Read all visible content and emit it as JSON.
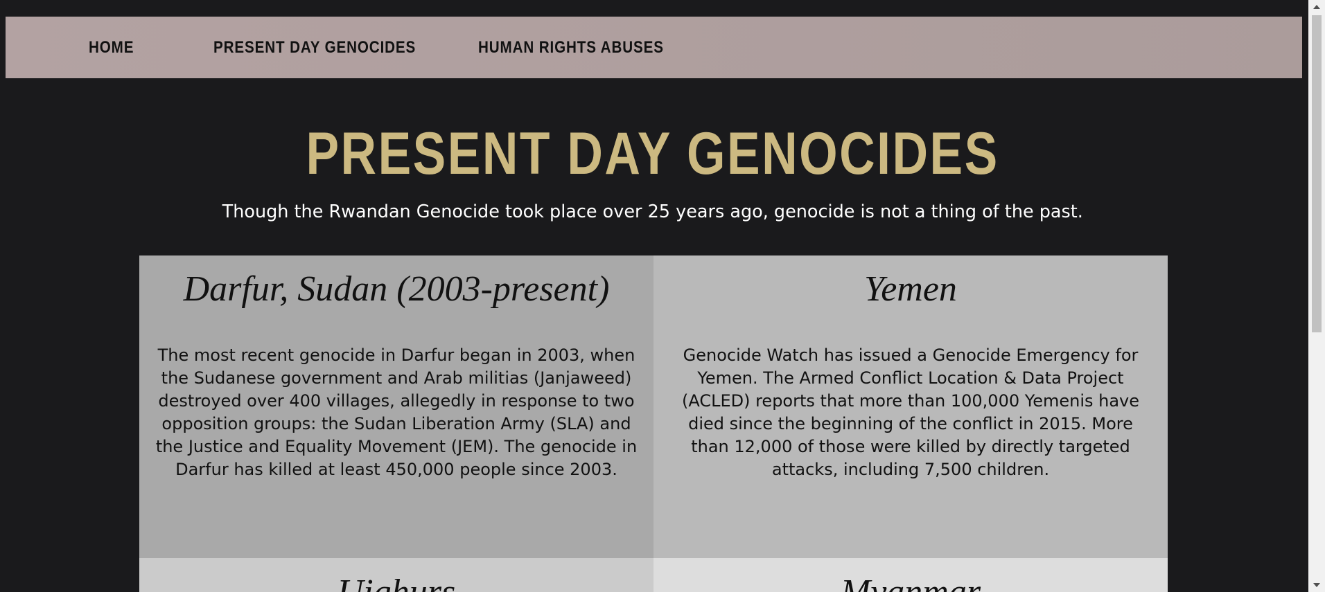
{
  "nav": {
    "items": [
      {
        "label": "HOME"
      },
      {
        "label": "PRESENT DAY GENOCIDES"
      },
      {
        "label": "HUMAN RIGHTS ABUSES"
      }
    ]
  },
  "main": {
    "title": "PRESENT DAY GENOCIDES",
    "subtitle": "Though the Rwandan Genocide took place over 25 years ago, genocide is not a thing of the past."
  },
  "cards": [
    {
      "title": "Darfur, Sudan (2003-present)",
      "body": "The most recent genocide in Darfur began in 2003, when the Sudanese government and Arab militias (Janjaweed) destroyed over 400 villages, allegedly in response to two opposition groups: the Sudan Liberation Army (SLA) and the Justice and Equality Movement (JEM). The genocide in Darfur has killed at least 450,000 people since 2003."
    },
    {
      "title": "Yemen",
      "body": "Genocide Watch has issued a Genocide Emergency for Yemen. The Armed Conflict Location & Data Project (ACLED) reports that more than 100,000 Yemenis have died since the beginning of the conflict in 2015. More than 12,000 of those were killed by directly targeted attacks, including 7,500 children."
    },
    {
      "title": "Uighurs"
    },
    {
      "title": "Myanmar"
    }
  ],
  "colors": {
    "background": "#1a1a1c",
    "navbar": "#b09f9f",
    "title_gold": "#ccb981",
    "card_darfur": "#a9a9a9",
    "card_yemen": "#b9b9b9",
    "card_uighurs": "#cbcbcb",
    "card_myanmar": "#dddddd"
  },
  "icons": {
    "scroll_up": "triangle-up-icon",
    "scroll_down": "triangle-down-icon"
  }
}
